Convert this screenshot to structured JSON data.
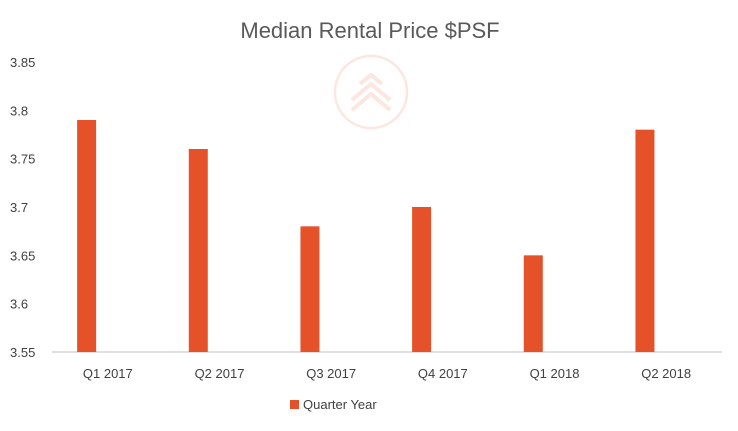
{
  "chart_data": {
    "type": "bar",
    "title": "Median Rental Price $PSF",
    "categories": [
      "Q1 2017",
      "Q2 2017",
      "Q3 2017",
      "Q4 2017",
      "Q1 2018",
      "Q2 2018"
    ],
    "series": [
      {
        "name": "Quarter Year",
        "values": [
          3.79,
          3.76,
          3.68,
          3.7,
          3.65,
          3.78
        ],
        "color": "#E5522A"
      }
    ],
    "ylim": [
      3.55,
      3.85
    ],
    "yticks": [
      "3.55",
      "3.6",
      "3.65",
      "3.7",
      "3.75",
      "3.8",
      "3.85"
    ],
    "grid": false,
    "legend": "bottom",
    "watermark": "house-logo-icon"
  }
}
